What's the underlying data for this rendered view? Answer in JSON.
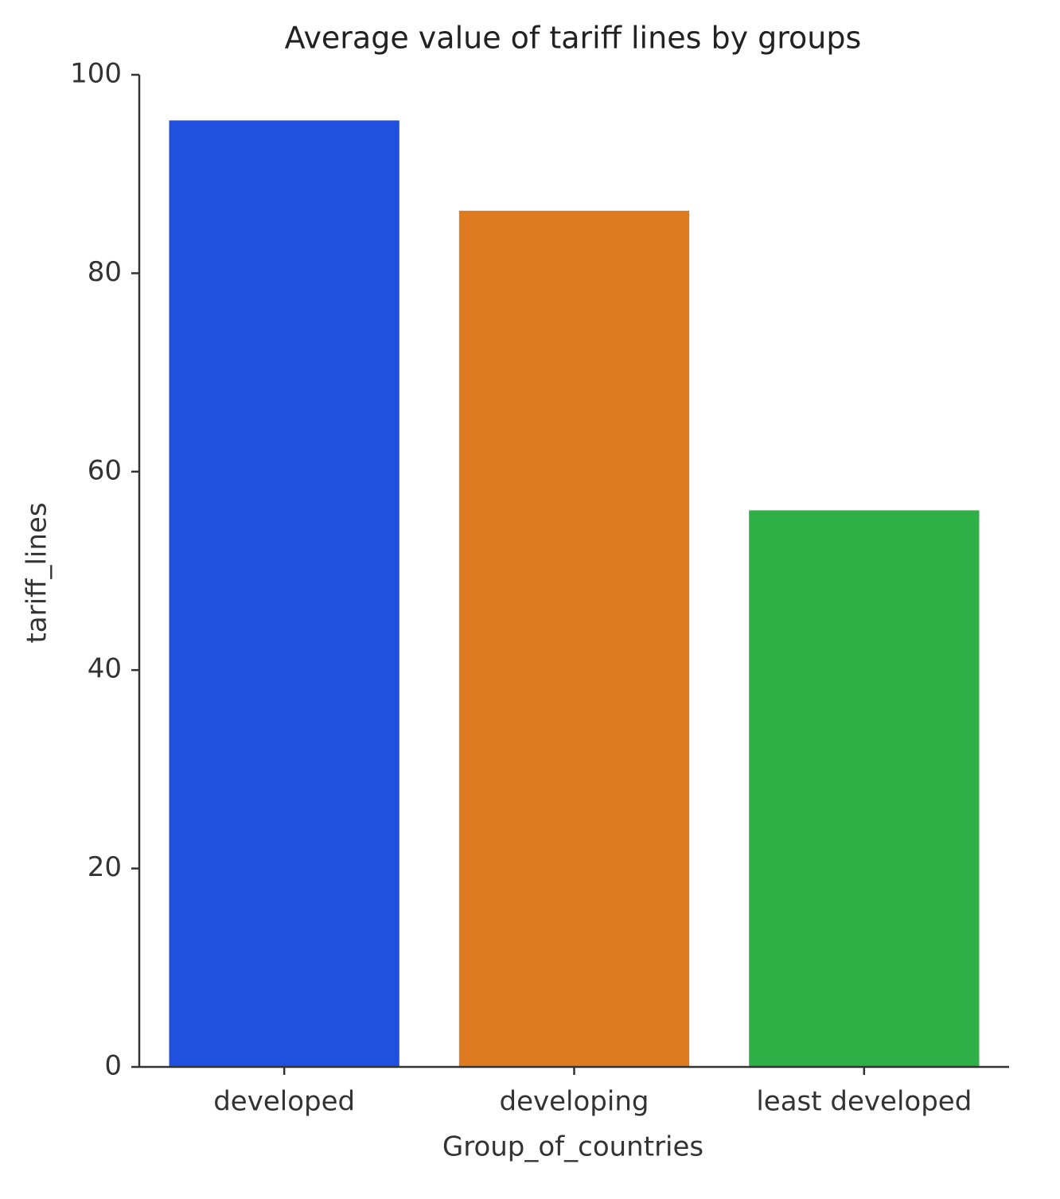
{
  "chart_data": {
    "type": "bar",
    "title": "Average value of tariff lines by groups",
    "x_label": "Group_of_countries",
    "y_label": "tariff_lines",
    "categories": [
      "developed",
      "developing",
      "least developed"
    ],
    "values": [
      95.4,
      86.3,
      56.1
    ],
    "colors": [
      "#2150de",
      "#de7b20",
      "#2fb046"
    ],
    "ylim": [
      0,
      100
    ],
    "yticks": [
      0,
      20,
      40,
      60,
      80,
      100
    ],
    "grid": false
  }
}
